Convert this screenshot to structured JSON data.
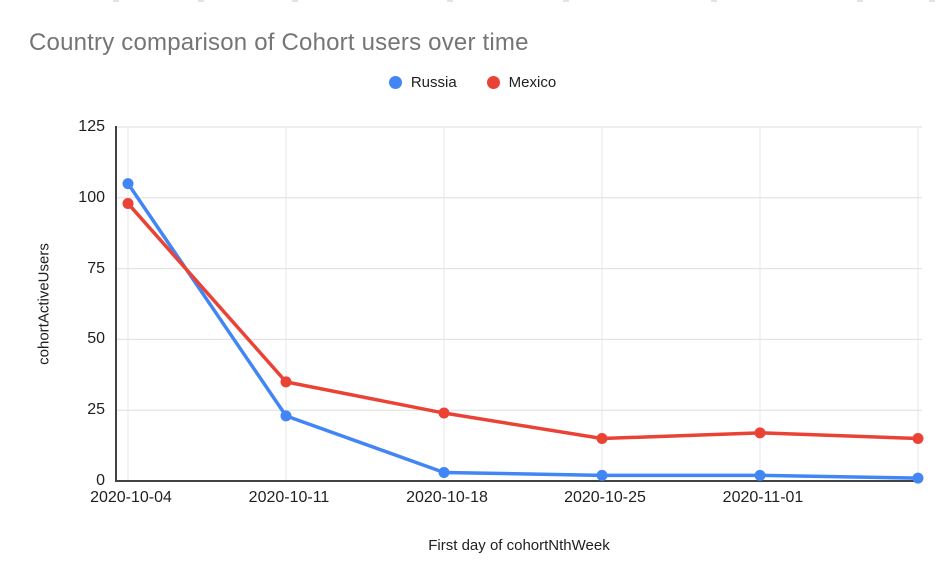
{
  "chart_data": {
    "type": "line",
    "title": "Country comparison of Cohort users over time",
    "xlabel": "First day of cohortNthWeek",
    "ylabel": "cohortActiveUsers",
    "categories": [
      "2020-10-04",
      "2020-10-11",
      "2020-10-18",
      "2020-10-25",
      "2020-11-01",
      ""
    ],
    "series": [
      {
        "name": "Russia",
        "color": "#4285F4",
        "values": [
          105,
          23,
          3,
          2,
          2,
          1
        ]
      },
      {
        "name": "Mexico",
        "color": "#EA4335",
        "values": [
          98,
          35,
          24,
          15,
          17,
          15
        ]
      }
    ],
    "y_ticks": [
      0,
      25,
      50,
      75,
      100,
      125
    ],
    "ylim": [
      0,
      125
    ],
    "grid": true,
    "legend_position": "top"
  },
  "colors": {
    "title_text": "#757575",
    "tick_text": "#1f1f1f",
    "gridline_horizontal": "#dedede",
    "gridline_vertical": "#e7e7e7",
    "axis_line": "#424242",
    "background": "#ffffff"
  },
  "artifacts": {
    "top_edge_marks_x": [
      113,
      198,
      292,
      447,
      563,
      711,
      857,
      929
    ]
  }
}
